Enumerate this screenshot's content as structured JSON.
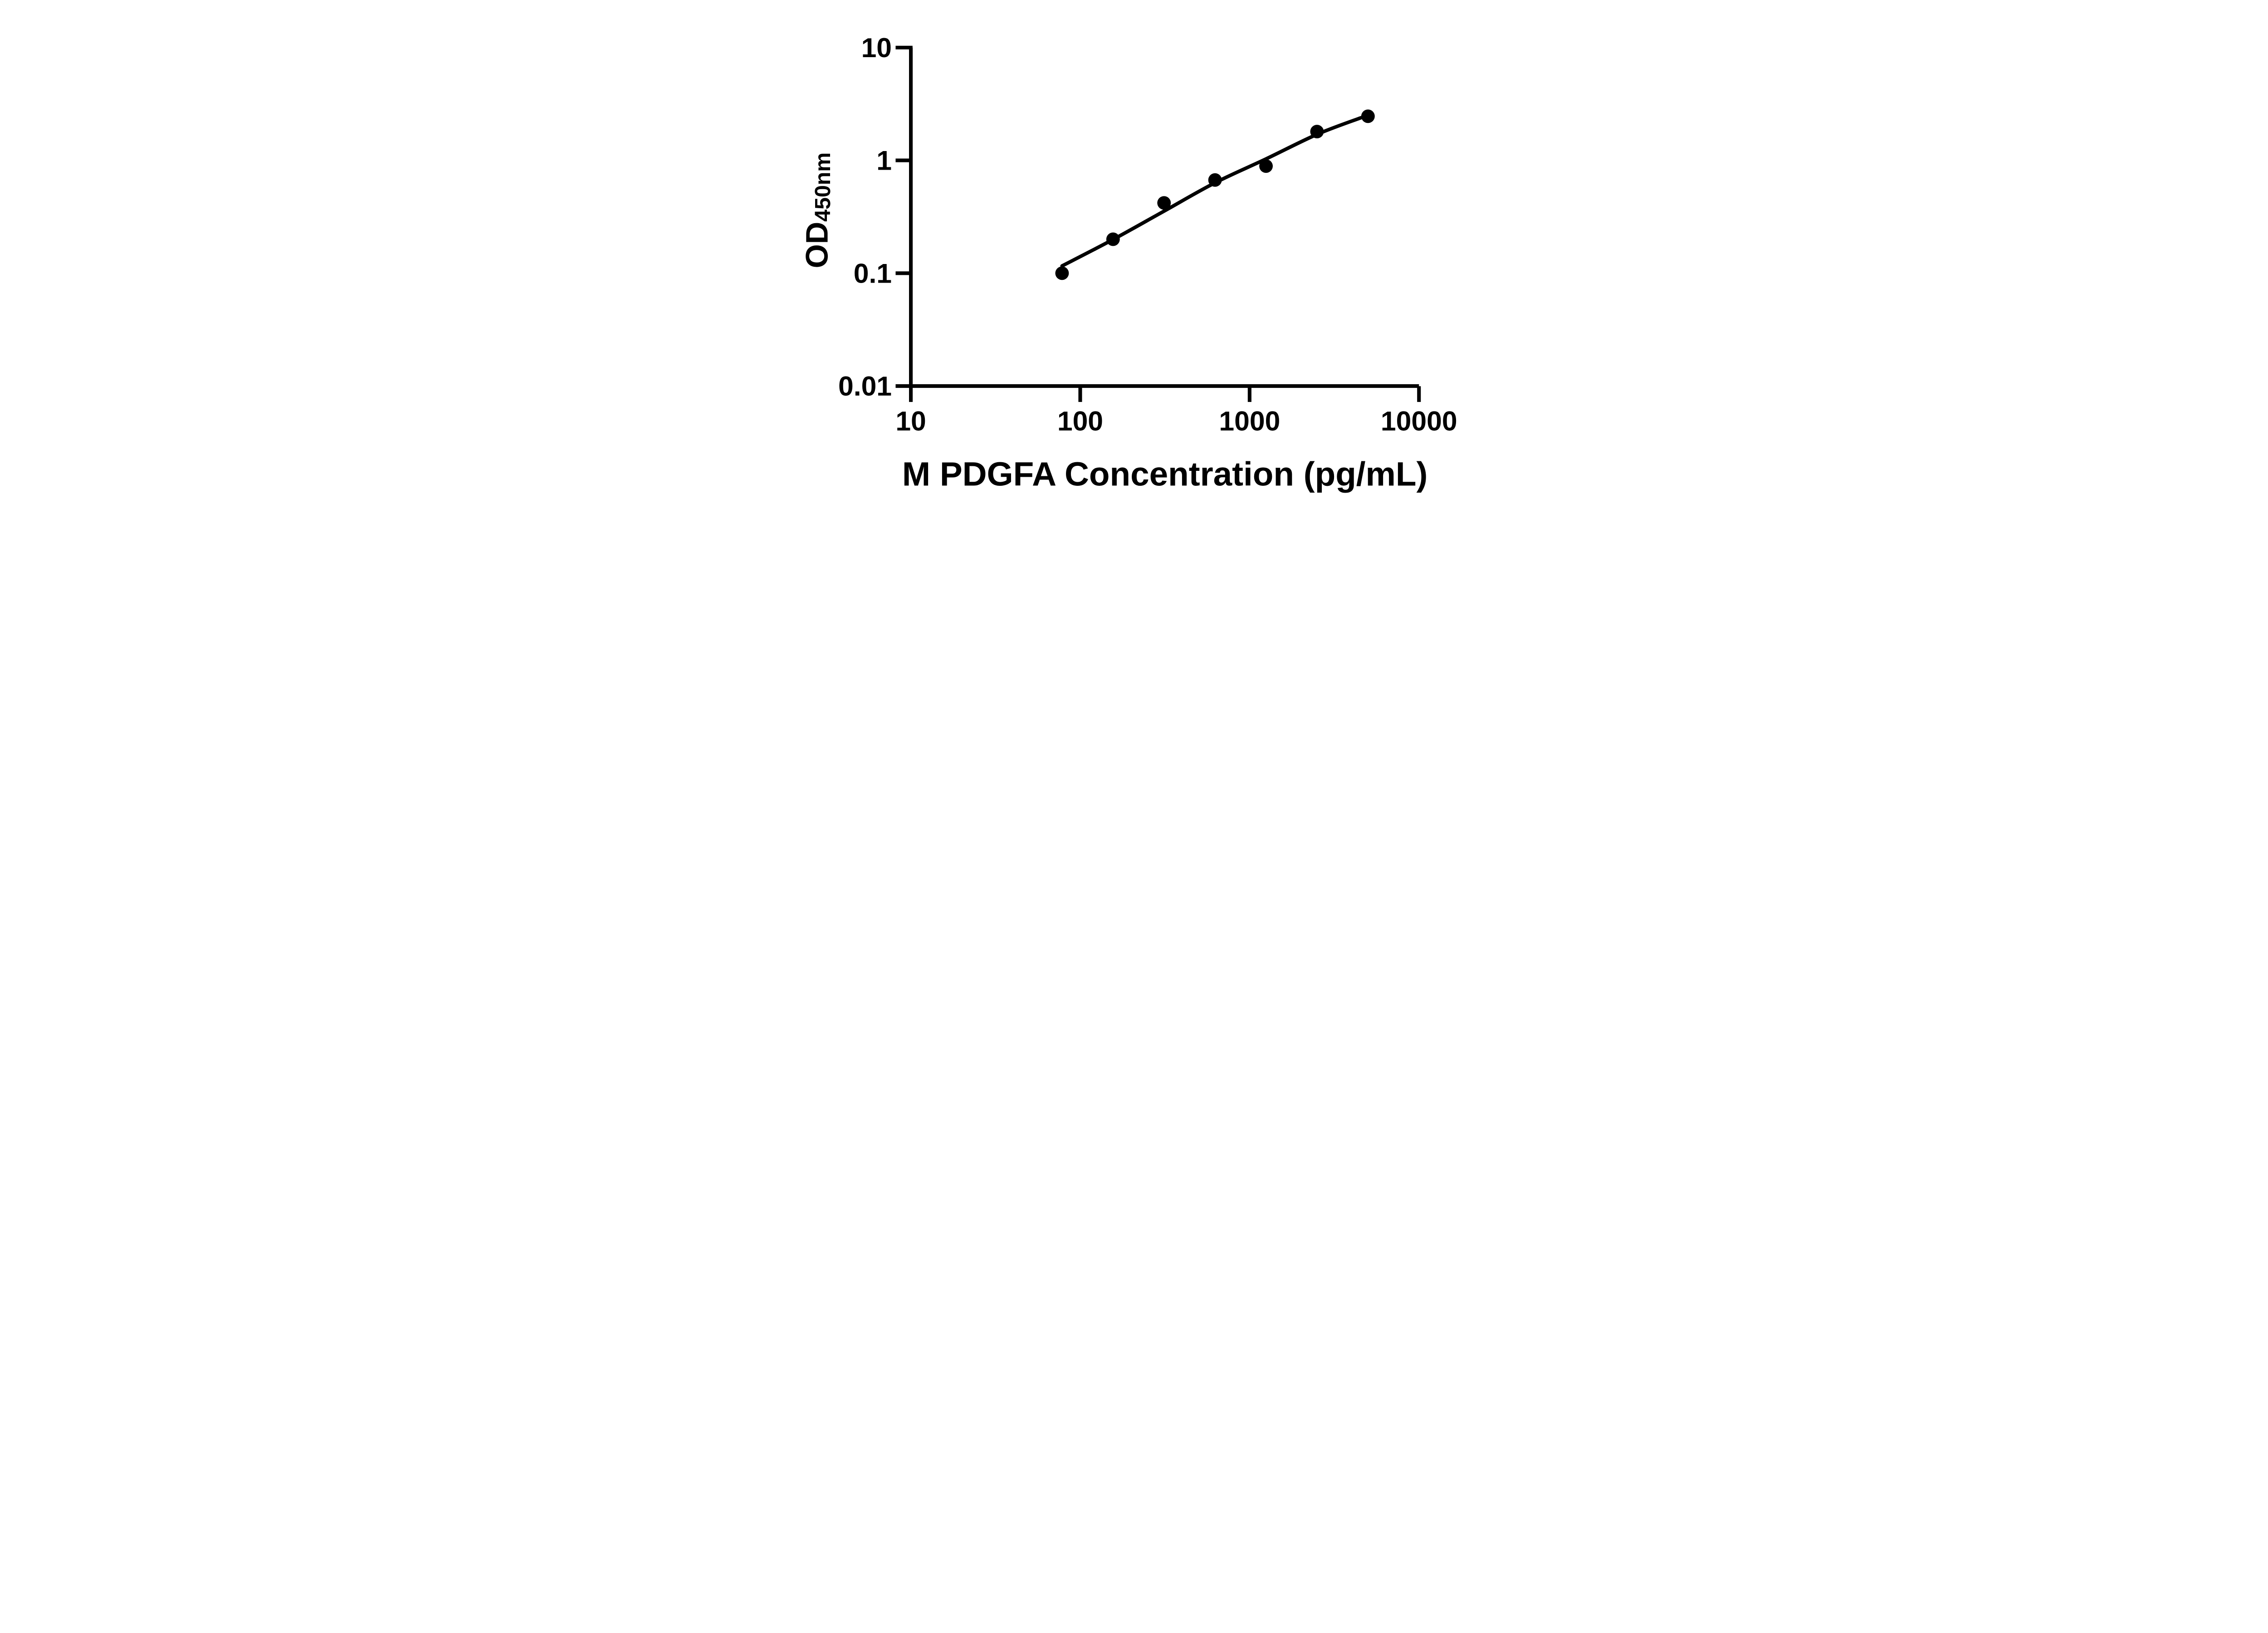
{
  "figure": {
    "background": "#ffffff",
    "ink_color": "#000000"
  },
  "chart_data": {
    "type": "scatter",
    "title": "",
    "xlabel": "M PDGFA Concentration (pg/mL)",
    "ylabel": "OD",
    "ylabel_subscript": "450nm",
    "x_scale": "log",
    "y_scale": "log",
    "xlim": [
      10,
      10000
    ],
    "ylim": [
      0.01,
      10
    ],
    "x_ticks": [
      10,
      100,
      1000,
      10000
    ],
    "x_tick_labels": [
      "10",
      "100",
      "1000",
      "10000"
    ],
    "y_ticks": [
      10,
      1,
      0.1,
      0.01
    ],
    "y_tick_labels": [
      "10",
      "1",
      "0.1",
      "0.01"
    ],
    "grid": false,
    "legend": null,
    "series": [
      {
        "name": "standard-points",
        "marker": "circle",
        "color": "#000000",
        "x": [
          78.125,
          156.25,
          312.5,
          625,
          1250,
          2500,
          5000
        ],
        "y": [
          0.1,
          0.2,
          0.42,
          0.67,
          0.89,
          1.8,
          2.46
        ]
      }
    ],
    "fit_curve": {
      "name": "standard-curve-fit",
      "color": "#000000",
      "x": [
        78.125,
        156.25,
        312.5,
        625,
        1250,
        2500,
        4550
      ],
      "y": [
        0.116,
        0.199,
        0.355,
        0.633,
        1.03,
        1.7,
        2.39
      ]
    }
  }
}
